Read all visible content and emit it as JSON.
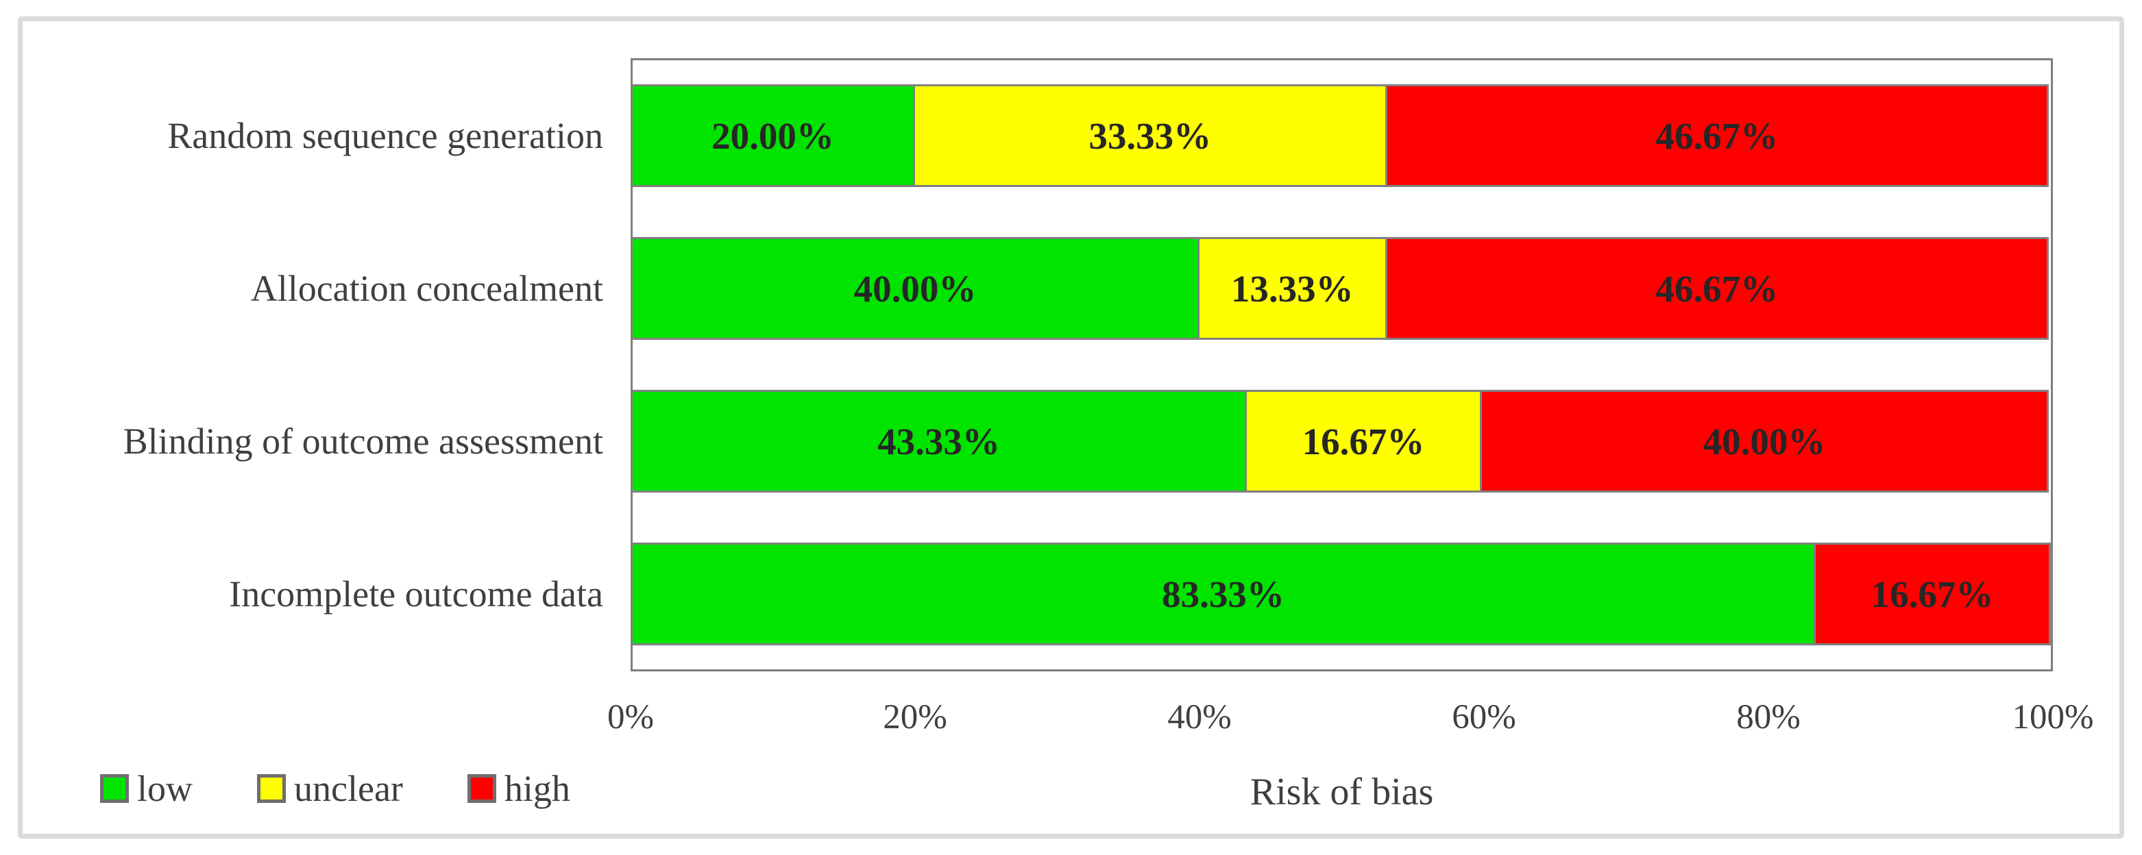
{
  "chart_data": {
    "type": "bar",
    "orientation": "horizontal",
    "stacked": true,
    "title": "",
    "xlabel": "Risk of bias",
    "ylabel": "",
    "xlim": [
      0,
      100
    ],
    "x_tick_labels": [
      "0%",
      "20%",
      "40%",
      "60%",
      "80%",
      "100%"
    ],
    "grid": false,
    "legend_position": "bottom-left",
    "categories": [
      "Random sequence generation",
      "Allocation concealment",
      "Blinding of outcome assessment",
      "Incomplete outcome data"
    ],
    "series": [
      {
        "name": "low",
        "color": "#00e400",
        "values": [
          20.0,
          40.0,
          43.33,
          83.33
        ]
      },
      {
        "name": "unclear",
        "color": "#ffff00",
        "values": [
          33.33,
          13.33,
          16.67,
          0.0
        ]
      },
      {
        "name": "high",
        "color": "#ff0000",
        "values": [
          46.67,
          46.67,
          40.0,
          16.67
        ]
      }
    ],
    "data_labels": [
      [
        "20.00%",
        "33.33%",
        "46.67%"
      ],
      [
        "40.00%",
        "13.33%",
        "46.67%"
      ],
      [
        "43.33%",
        "16.67%",
        "40.00%"
      ],
      [
        "83.33%",
        "",
        "16.67%"
      ]
    ]
  }
}
